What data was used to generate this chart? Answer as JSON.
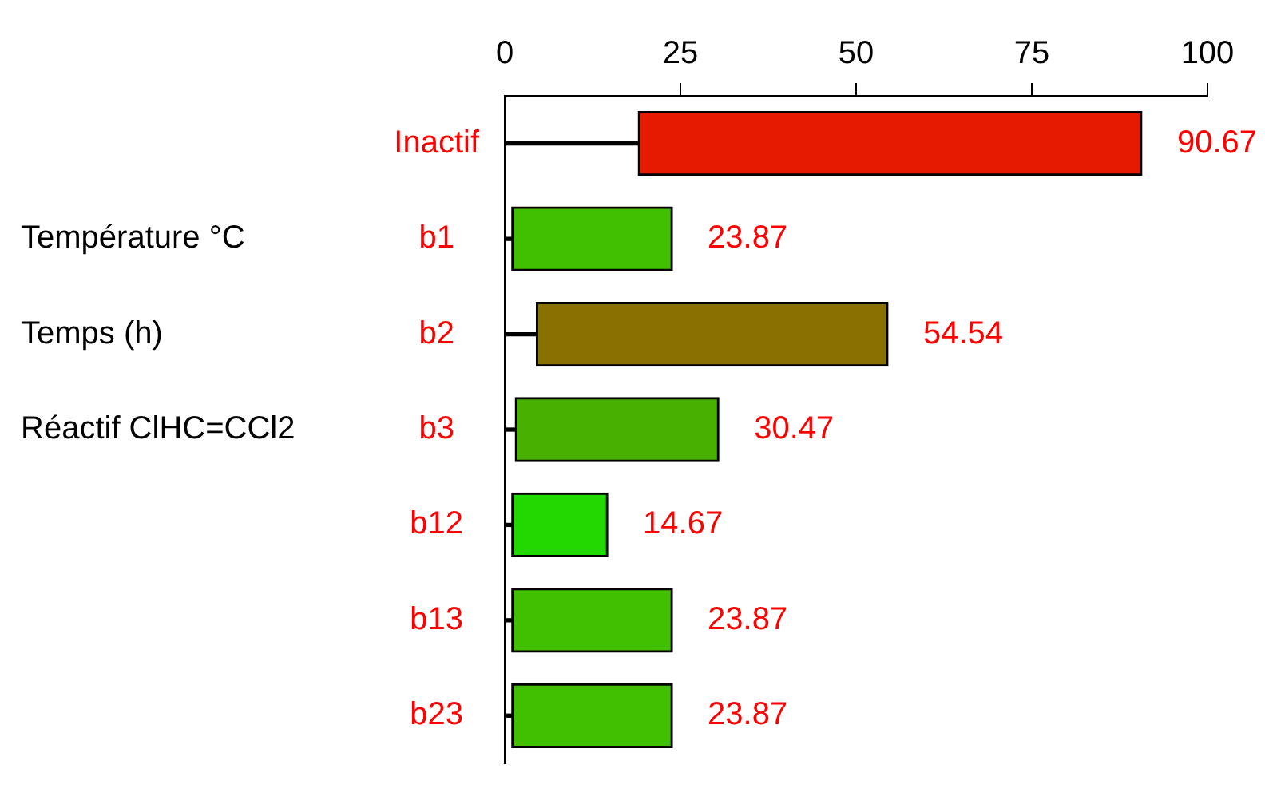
{
  "chart_data": {
    "type": "bar",
    "orientation": "horizontal",
    "stacked": true,
    "categories": [
      "Inactif",
      "b1",
      "b2",
      "b3",
      "b12",
      "b13",
      "b23"
    ],
    "series": [
      {
        "color": "#000000",
        "values": [
          19,
          1,
          4.5,
          1.5,
          1,
          1,
          1
        ]
      },
      {
        "colors": [
          "#e61a00",
          "#40c000",
          "#8a7000",
          "#48b000",
          "#22d800",
          "#40c000",
          "#40c000"
        ],
        "values": [
          71.67,
          22.87,
          50.04,
          28.97,
          13.67,
          22.87,
          22.87
        ]
      }
    ],
    "totals": [
      "90.67",
      "23.87",
      "54.54",
      "30.47",
      "14.67",
      "23.87",
      "23.87"
    ],
    "xlim": [
      0,
      100
    ],
    "xticks": [
      0,
      25,
      50,
      75,
      100
    ],
    "grid": false,
    "legend": false,
    "annotations": [
      "Température °C",
      "Temps (h)",
      "Réactif ClHC=CCl2"
    ]
  }
}
